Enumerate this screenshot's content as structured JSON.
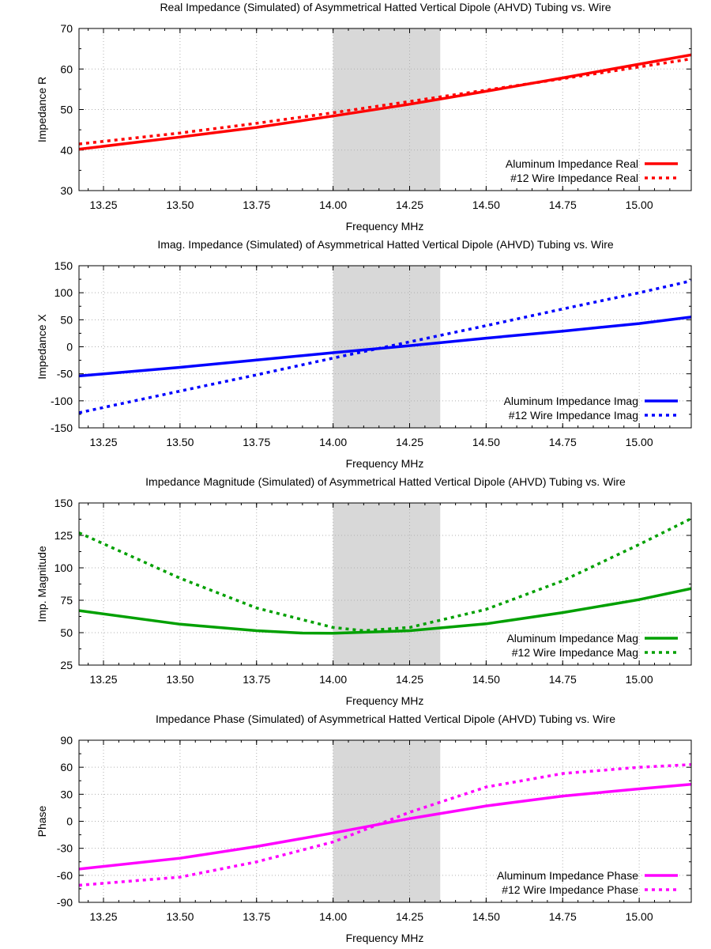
{
  "chart_data": [
    {
      "type": "line",
      "title": "Real Impedance (Simulated) of Asymmetrical Hatted Vertical Dipole (AHVD) Tubing vs. Wire",
      "xlabel": "Frequency MHz",
      "ylabel": "Impedance R",
      "xlim": [
        13.17,
        15.17
      ],
      "ylim": [
        30,
        70
      ],
      "xticks": [
        "13.25",
        "13.50",
        "13.75",
        "14.00",
        "14.25",
        "14.50",
        "14.75",
        "15.00"
      ],
      "yticks": [
        "30",
        "40",
        "50",
        "60",
        "70"
      ],
      "highlight_band": [
        14.0,
        14.35
      ],
      "grid": true,
      "legend_position": "bottom-right",
      "series": [
        {
          "name": "Aluminum Impedance Real",
          "style": "solid",
          "color": "#ff0000",
          "x": [
            13.17,
            13.5,
            13.75,
            14.0,
            14.25,
            14.5,
            14.75,
            15.0,
            15.17
          ],
          "y": [
            40.2,
            43.2,
            45.6,
            48.4,
            51.3,
            54.5,
            57.8,
            61.2,
            63.5
          ]
        },
        {
          "name": "#12 Wire Impedance Real",
          "style": "dotted",
          "color": "#ff0000",
          "x": [
            13.17,
            13.5,
            13.75,
            14.0,
            14.25,
            14.5,
            14.75,
            15.0,
            15.17
          ],
          "y": [
            41.5,
            44.2,
            46.6,
            49.2,
            52.0,
            54.8,
            57.6,
            60.5,
            62.5
          ]
        }
      ]
    },
    {
      "type": "line",
      "title": "Imag. Impedance (Simulated) of Asymmetrical Hatted Vertical Dipole (AHVD) Tubing vs. Wire",
      "xlabel": "Frequency MHz",
      "ylabel": "Impedance X",
      "xlim": [
        13.17,
        15.17
      ],
      "ylim": [
        -150,
        150
      ],
      "xticks": [
        "13.25",
        "13.50",
        "13.75",
        "14.00",
        "14.25",
        "14.50",
        "14.75",
        "15.00"
      ],
      "yticks": [
        "-150",
        "-100",
        "-50",
        "0",
        "50",
        "100",
        "150"
      ],
      "highlight_band": [
        14.0,
        14.35
      ],
      "grid": true,
      "legend_position": "bottom-right",
      "series": [
        {
          "name": "Aluminum Impedance Imag",
          "style": "solid",
          "color": "#0000ff",
          "x": [
            13.17,
            13.5,
            13.75,
            14.0,
            14.25,
            14.5,
            14.75,
            15.0,
            15.17
          ],
          "y": [
            -54,
            -38,
            -24.5,
            -11,
            2,
            16,
            29,
            43,
            55
          ]
        },
        {
          "name": "#12 Wire Impedance Imag",
          "style": "dotted",
          "color": "#0000ff",
          "x": [
            13.17,
            13.5,
            13.75,
            14.0,
            14.25,
            14.5,
            14.75,
            15.0,
            15.17
          ],
          "y": [
            -122,
            -82,
            -52,
            -21,
            9,
            39,
            70,
            100,
            122
          ]
        }
      ]
    },
    {
      "type": "line",
      "title": "Impedance Magnitude (Simulated) of Asymmetrical Hatted Vertical Dipole (AHVD) Tubing vs. Wire",
      "xlabel": "Frequency MHz",
      "ylabel": "Imp. Magnitude",
      "xlim": [
        13.17,
        15.17
      ],
      "ylim": [
        25,
        150
      ],
      "xticks": [
        "13.25",
        "13.50",
        "13.75",
        "14.00",
        "14.25",
        "14.50",
        "14.75",
        "15.00"
      ],
      "yticks": [
        "25",
        "50",
        "75",
        "100",
        "125",
        "150"
      ],
      "highlight_band": [
        14.0,
        14.35
      ],
      "grid": true,
      "legend_position": "bottom-right",
      "series": [
        {
          "name": "Aluminum Impedance Mag",
          "style": "solid",
          "color": "#00a000",
          "x": [
            13.17,
            13.5,
            13.75,
            13.9,
            14.0,
            14.25,
            14.5,
            14.75,
            15.0,
            15.17
          ],
          "y": [
            67,
            56.5,
            51.5,
            49.7,
            49.5,
            51.5,
            56.8,
            65.5,
            75.5,
            84
          ]
        },
        {
          "name": "#12 Wire Impedance Mag",
          "style": "dotted",
          "color": "#00a000",
          "x": [
            13.17,
            13.5,
            13.75,
            14.0,
            14.1,
            14.25,
            14.5,
            14.75,
            15.0,
            15.17
          ],
          "y": [
            127,
            92,
            69,
            54,
            51.5,
            54,
            68,
            90,
            118,
            138
          ]
        }
      ]
    },
    {
      "type": "line",
      "title": "Impedance Phase (Simulated) of Asymmetrical Hatted Vertical Dipole (AHVD) Tubing vs. Wire",
      "xlabel": "Frequency MHz",
      "ylabel": "Phase",
      "xlim": [
        13.17,
        15.17
      ],
      "ylim": [
        -90,
        90
      ],
      "xticks": [
        "13.25",
        "13.50",
        "13.75",
        "14.00",
        "14.25",
        "14.50",
        "14.75",
        "15.00"
      ],
      "yticks": [
        "-90",
        "-60",
        "-30",
        "0",
        "30",
        "60",
        "90"
      ],
      "highlight_band": [
        14.0,
        14.35
      ],
      "grid": true,
      "legend_position": "bottom-right",
      "series": [
        {
          "name": "Aluminum Impedance Phase",
          "style": "solid",
          "color": "#ff00ff",
          "x": [
            13.17,
            13.5,
            13.75,
            14.0,
            14.25,
            14.5,
            14.75,
            15.0,
            15.17
          ],
          "y": [
            -53,
            -41,
            -28,
            -13,
            3,
            17,
            28,
            36,
            41
          ]
        },
        {
          "name": "#12 Wire Impedance Phase",
          "style": "dotted",
          "color": "#ff00ff",
          "x": [
            13.17,
            13.5,
            13.75,
            14.0,
            14.25,
            14.5,
            14.75,
            15.0,
            15.17
          ],
          "y": [
            -71,
            -62,
            -45,
            -23,
            10,
            38,
            53,
            60,
            63
          ]
        }
      ]
    }
  ]
}
